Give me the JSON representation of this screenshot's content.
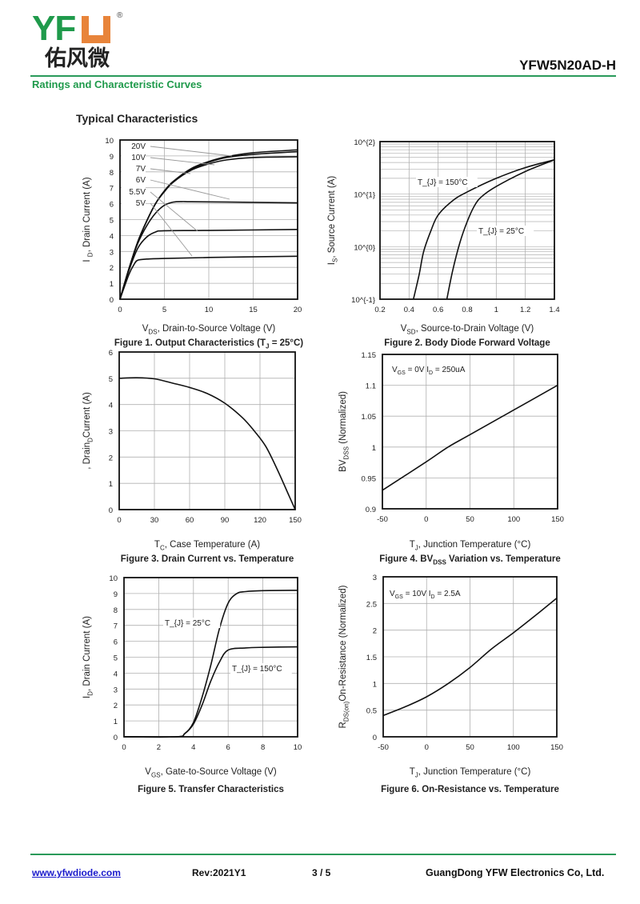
{
  "header": {
    "logo_text": "YFW",
    "logo_cn": "佑风微",
    "logo_reg": "®",
    "part_number": "YFW5N20AD-H",
    "section": "Ratings and Characteristic Curves",
    "subtitle": "Typical Characteristics"
  },
  "footer": {
    "website": "www.yfwdiode.com",
    "revision": "Rev:2021Y1",
    "page": "3 / 5",
    "company": "GuangDong YFW Electronics Co, Ltd."
  },
  "colors": {
    "brand_green": "#1f9a4b",
    "brand_orange": "#e8843a",
    "line": "#111111",
    "grid": "#b0b0b0"
  },
  "chart_data": [
    {
      "type": "line",
      "title": "Figure 1. Output Characteristics (T_{J} = 25°C)",
      "xlabel": "V_{DS}, Drain-to-Source Voltage (V)",
      "ylabel": "I   _{D}, Drain Current (A)",
      "xlim": [
        0,
        20
      ],
      "ylim": [
        0,
        10
      ],
      "xticks": [
        0,
        5,
        10,
        15,
        20
      ],
      "yticks": [
        0,
        1,
        2,
        3,
        4,
        5,
        6,
        7,
        8,
        9,
        10
      ],
      "grid": true,
      "series": [
        {
          "name": "20V",
          "x": [
            0,
            1,
            2,
            3,
            4,
            5,
            6,
            8,
            10,
            12,
            15,
            20
          ],
          "y": [
            0,
            1.9,
            3.6,
            4.9,
            6.0,
            6.8,
            7.4,
            8.2,
            8.65,
            8.95,
            9.2,
            9.38
          ]
        },
        {
          "name": "10V",
          "x": [
            0,
            1,
            2,
            3,
            4,
            5,
            6,
            8,
            10,
            12,
            15,
            20
          ],
          "y": [
            0,
            1.9,
            3.6,
            4.9,
            6.0,
            6.8,
            7.4,
            8.15,
            8.6,
            8.9,
            9.1,
            9.27
          ]
        },
        {
          "name": "7V",
          "x": [
            0,
            1,
            2,
            3,
            4,
            5,
            6,
            8,
            10,
            12,
            15,
            20
          ],
          "y": [
            0,
            1.9,
            3.6,
            4.9,
            6.0,
            6.75,
            7.35,
            8.1,
            8.5,
            8.75,
            8.9,
            8.95
          ]
        },
        {
          "name": "6V",
          "x": [
            0,
            1,
            2,
            3,
            4,
            5,
            6,
            7,
            8,
            12,
            20
          ],
          "y": [
            0,
            1.9,
            3.5,
            4.6,
            5.4,
            5.9,
            6.1,
            6.13,
            6.12,
            6.1,
            6.05
          ]
        },
        {
          "name": "5.5V",
          "x": [
            0,
            1,
            2,
            3,
            4,
            5,
            10,
            20
          ],
          "y": [
            0,
            1.8,
            3.2,
            3.9,
            4.22,
            4.3,
            4.32,
            4.38
          ]
        },
        {
          "name": "5V",
          "x": [
            0,
            1,
            1.6,
            2,
            3,
            5,
            10,
            20
          ],
          "y": [
            0,
            1.55,
            2.2,
            2.45,
            2.52,
            2.56,
            2.62,
            2.7
          ]
        }
      ]
    },
    {
      "type": "line",
      "title": "Figure 2. Body Diode Forward Voltage",
      "xlabel": "V_{SD}, Source-to-Drain Voltage (V)",
      "ylabel": "I_{S}, Source Current (A)",
      "xlim": [
        0.2,
        1.4
      ],
      "ylim": [
        0.1,
        100
      ],
      "yscale": "log",
      "xticks": [
        0.2,
        0.4,
        0.6,
        0.8,
        1,
        1.2,
        1.4
      ],
      "yticks": [
        0.1,
        1,
        10,
        100
      ],
      "ytick_labels": [
        "10^{-1}",
        "10^{0}",
        "10^{1}",
        "10^{2}"
      ],
      "grid": true,
      "annotations": [
        "T_{J} = 150°C",
        "T_{J} = 25°C"
      ],
      "series": [
        {
          "name": "T_J = 150°C",
          "x": [
            0.43,
            0.47,
            0.5,
            0.55,
            0.6,
            0.7,
            0.8,
            1.0,
            1.2,
            1.4
          ],
          "y": [
            0.1,
            0.3,
            0.8,
            2,
            4,
            7.5,
            11,
            20,
            32,
            45
          ]
        },
        {
          "name": "T_J = 25°C",
          "x": [
            0.66,
            0.7,
            0.75,
            0.8,
            0.85,
            0.9,
            1.0,
            1.2,
            1.4
          ],
          "y": [
            0.1,
            0.35,
            1.2,
            3,
            6,
            9,
            14,
            27,
            45
          ]
        }
      ]
    },
    {
      "type": "line",
      "title": "Figure 3. Drain Current vs. Temperature",
      "xlabel": "T_{C}, Case Temperature (A)",
      "ylabel": ", Drain_{D}Current (A)",
      "xlim": [
        0,
        150
      ],
      "ylim": [
        0,
        6
      ],
      "xticks": [
        0,
        30,
        60,
        90,
        120,
        150
      ],
      "yticks": [
        0,
        1,
        2,
        3,
        4,
        5,
        6
      ],
      "grid": true,
      "series": [
        {
          "name": "I_D",
          "x": [
            0,
            15,
            30,
            45,
            60,
            75,
            90,
            105,
            115,
            125,
            135,
            145,
            150
          ],
          "y": [
            5,
            5.02,
            4.98,
            4.82,
            4.65,
            4.42,
            4.05,
            3.5,
            3.0,
            2.4,
            1.5,
            0.5,
            0
          ]
        }
      ]
    },
    {
      "type": "line",
      "title": "Figure 4. BV_{DSS} Variation vs. Temperature",
      "xlabel": "T_{J}, Junction Temperature (°C)",
      "ylabel": "BV_{DSS} (Normalized)",
      "xlim": [
        -50,
        150
      ],
      "ylim": [
        0.9,
        1.15
      ],
      "xticks": [
        -50,
        0,
        50,
        100,
        150
      ],
      "yticks": [
        0.9,
        0.95,
        1,
        1.05,
        1.1,
        1.15
      ],
      "grid": true,
      "annotations": [
        "V_{GS} = 0V I_{D} = 250uA"
      ],
      "series": [
        {
          "name": "BVDSS",
          "x": [
            -50,
            0,
            25,
            50,
            100,
            150
          ],
          "y": [
            0.93,
            0.976,
            1.0,
            1.02,
            1.06,
            1.1
          ]
        }
      ]
    },
    {
      "type": "line",
      "title": "Figure 5. Transfer Characteristics",
      "xlabel": "V_{GS}, Gate-to-Source Voltage (V)",
      "ylabel": "I_{D}, Drain Current (A)",
      "xlim": [
        0,
        10
      ],
      "ylim": [
        0,
        10
      ],
      "xticks": [
        0,
        2,
        4,
        6,
        8,
        10
      ],
      "yticks": [
        0,
        1,
        2,
        3,
        4,
        5,
        6,
        7,
        8,
        9,
        10
      ],
      "grid": true,
      "annotations": [
        "T_{J} = 25°C",
        "T_{J} = 150°C"
      ],
      "series": [
        {
          "name": "T_J = 25°C",
          "x": [
            0,
            3,
            3.5,
            4,
            4.5,
            5,
            5.5,
            6,
            6.5,
            7,
            8,
            10
          ],
          "y": [
            0,
            0,
            0.2,
            0.9,
            2.5,
            4.5,
            6.8,
            8.4,
            9.0,
            9.12,
            9.18,
            9.2
          ]
        },
        {
          "name": "T_J = 150°C",
          "x": [
            0,
            3,
            3.5,
            4,
            4.5,
            5,
            5.5,
            6,
            7,
            8,
            10
          ],
          "y": [
            0,
            0,
            0.2,
            0.8,
            2.0,
            3.5,
            4.7,
            5.45,
            5.58,
            5.62,
            5.65
          ]
        }
      ]
    },
    {
      "type": "line",
      "title": "Figure 6. On-Resistance vs. Temperature",
      "xlabel": "T_{J}, Junction Temperature (°C)",
      "ylabel": "R_{DS(on)}On-Resistance (Normalized)",
      "xlim": [
        -50,
        150
      ],
      "ylim": [
        0,
        3
      ],
      "xticks": [
        -50,
        0,
        50,
        100,
        150
      ],
      "yticks": [
        0,
        0.5,
        1,
        1.5,
        2,
        2.5,
        3
      ],
      "grid": true,
      "annotations": [
        "V_{GS} = 10V I_{D} = 2.5A"
      ],
      "series": [
        {
          "name": "RDS(on)",
          "x": [
            -50,
            -25,
            0,
            25,
            50,
            75,
            100,
            125,
            150
          ],
          "y": [
            0.4,
            0.56,
            0.75,
            1.0,
            1.3,
            1.65,
            1.95,
            2.27,
            2.6
          ]
        }
      ]
    }
  ]
}
